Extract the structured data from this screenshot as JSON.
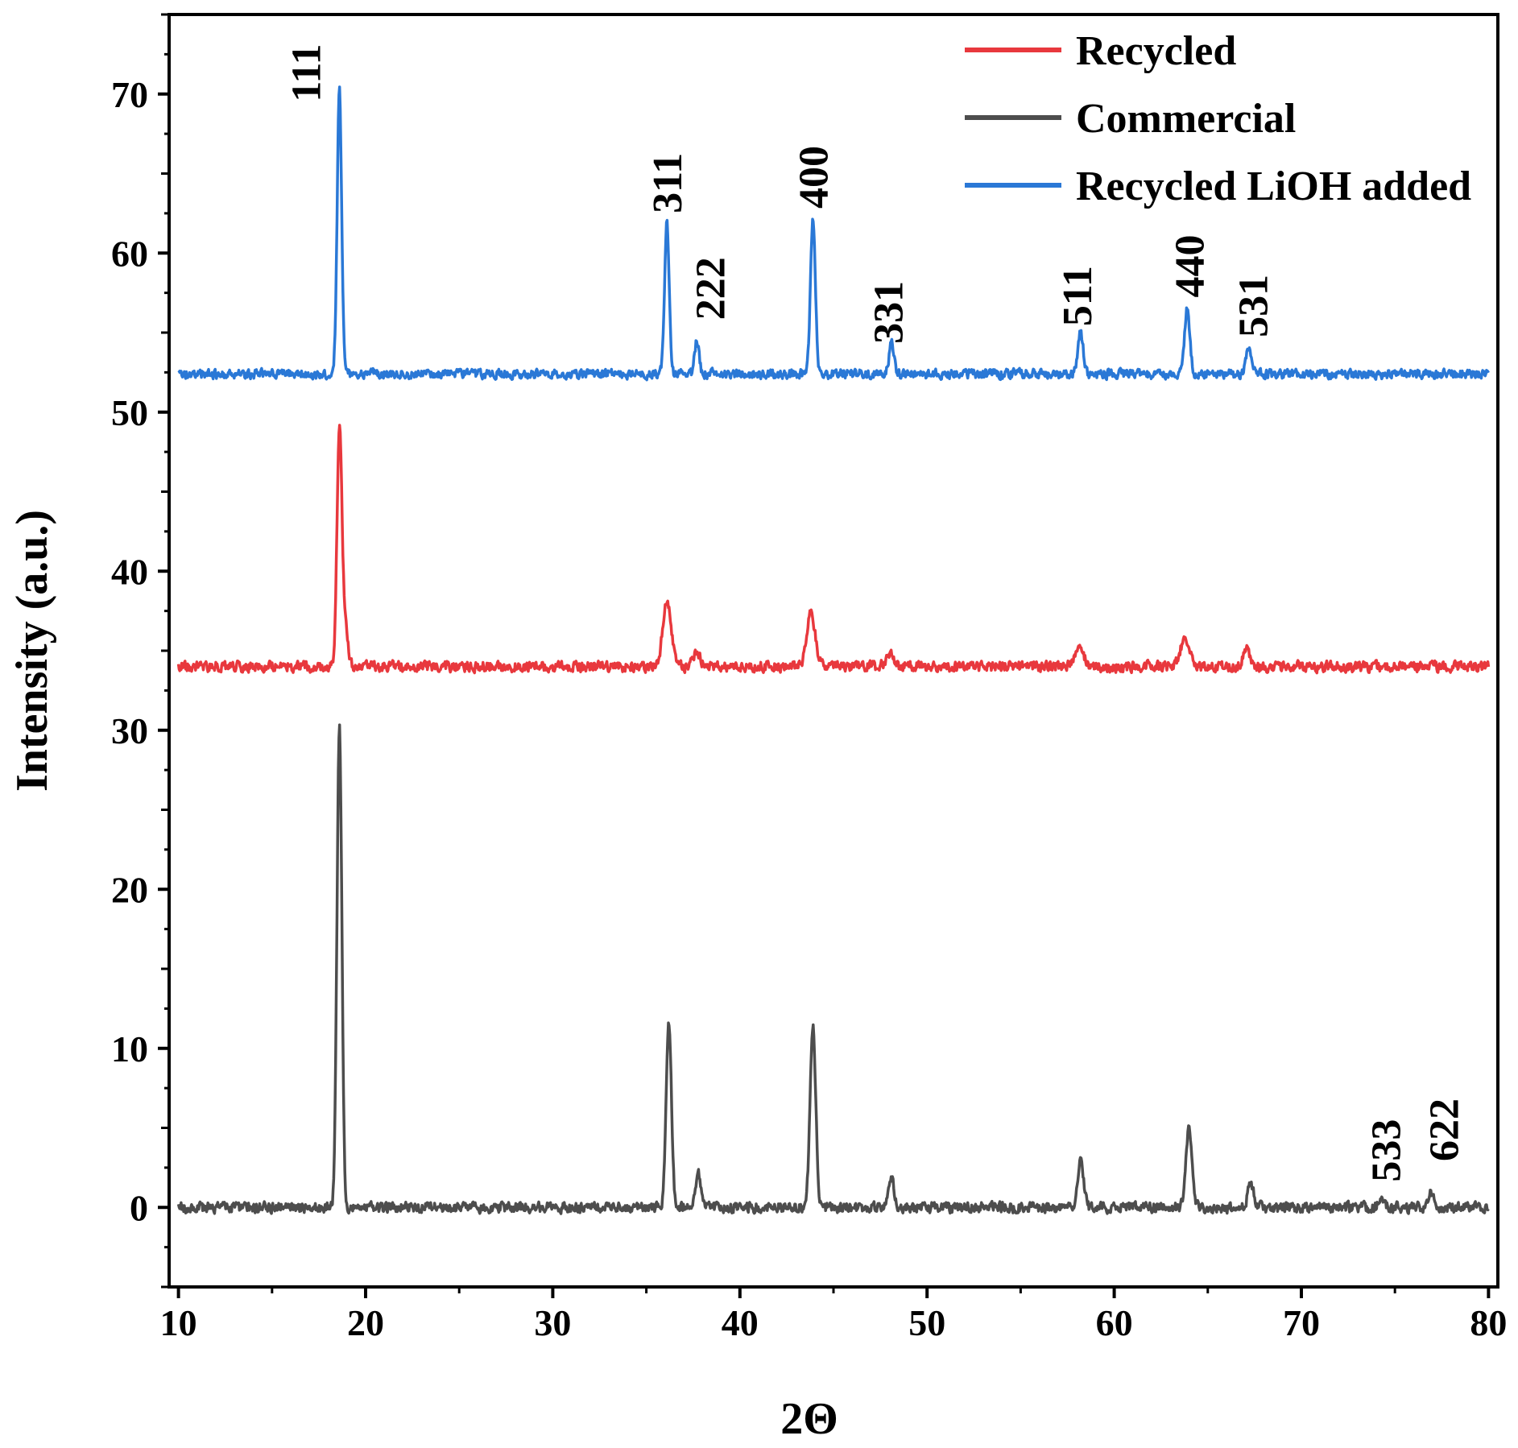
{
  "chart_data": {
    "type": "line",
    "title": "",
    "xlabel": "2Θ",
    "ylabel": "Intensity (a.u.)",
    "xlim": [
      9.5,
      80.5
    ],
    "ylim": [
      -5,
      75
    ],
    "x_ticks": [
      "10",
      "20",
      "30",
      "40",
      "50",
      "60",
      "70",
      "80"
    ],
    "y_ticks": [
      "0",
      "10",
      "20",
      "30",
      "40",
      "50",
      "60",
      "70"
    ],
    "grid": false,
    "legend_position": "top-right",
    "series": [
      {
        "name": "Recycled",
        "color": "#e8383d",
        "baseline": 34,
        "noise": 0.45,
        "peaks": [
          {
            "x": 18.6,
            "height": 14.7,
            "width": 0.13
          },
          {
            "x": 18.9,
            "height": 2.6,
            "width": 0.15
          },
          {
            "x": 36.1,
            "height": 4.3,
            "width": 0.22
          },
          {
            "x": 37.7,
            "height": 0.9,
            "width": 0.2
          },
          {
            "x": 43.8,
            "height": 3.4,
            "width": 0.22
          },
          {
            "x": 48.0,
            "height": 0.8,
            "width": 0.2
          },
          {
            "x": 58.1,
            "height": 1.0,
            "width": 0.3
          },
          {
            "x": 63.8,
            "height": 1.8,
            "width": 0.25
          },
          {
            "x": 67.1,
            "height": 1.0,
            "width": 0.2
          }
        ]
      },
      {
        "name": "Commercial",
        "color": "#4d4d4d",
        "baseline": 0,
        "noise": 0.45,
        "peaks": [
          {
            "x": 18.6,
            "height": 30.3,
            "width": 0.13
          },
          {
            "x": 36.2,
            "height": 11.7,
            "width": 0.14
          },
          {
            "x": 37.8,
            "height": 2.0,
            "width": 0.14
          },
          {
            "x": 43.9,
            "height": 11.5,
            "width": 0.15
          },
          {
            "x": 48.1,
            "height": 1.8,
            "width": 0.15
          },
          {
            "x": 58.2,
            "height": 2.8,
            "width": 0.16
          },
          {
            "x": 64.0,
            "height": 4.9,
            "width": 0.17
          },
          {
            "x": 67.3,
            "height": 1.5,
            "width": 0.16
          },
          {
            "x": 74.3,
            "height": 0.6,
            "width": 0.15
          },
          {
            "x": 76.9,
            "height": 1.0,
            "width": 0.15
          }
        ]
      },
      {
        "name": "Recycled LiOH added",
        "color": "#2a78d6",
        "baseline": 52.4,
        "noise": 0.4,
        "peaks": [
          {
            "x": 18.6,
            "height": 17.8,
            "width": 0.12
          },
          {
            "x": 36.1,
            "height": 9.6,
            "width": 0.12
          },
          {
            "x": 37.7,
            "height": 2.1,
            "width": 0.12
          },
          {
            "x": 43.9,
            "height": 9.7,
            "width": 0.13
          },
          {
            "x": 48.1,
            "height": 1.9,
            "width": 0.13
          },
          {
            "x": 58.2,
            "height": 2.6,
            "width": 0.14
          },
          {
            "x": 63.9,
            "height": 4.1,
            "width": 0.14
          },
          {
            "x": 67.2,
            "height": 1.7,
            "width": 0.14
          }
        ]
      }
    ],
    "annotations": [
      {
        "text": "111",
        "x": 16.8,
        "y": 69.5
      },
      {
        "text": "311",
        "x": 36.1,
        "y": 62.5
      },
      {
        "text": "222",
        "x": 38.4,
        "y": 55.8
      },
      {
        "text": "400",
        "x": 43.9,
        "y": 62.8
      },
      {
        "text": "331",
        "x": 47.9,
        "y": 54.3
      },
      {
        "text": "511",
        "x": 58.0,
        "y": 55.4
      },
      {
        "text": "440",
        "x": 64.0,
        "y": 57.2
      },
      {
        "text": "531",
        "x": 67.4,
        "y": 54.7
      },
      {
        "text": "533",
        "x": 74.5,
        "y": 1.6
      },
      {
        "text": "622",
        "x": 77.6,
        "y": 2.9
      }
    ]
  }
}
